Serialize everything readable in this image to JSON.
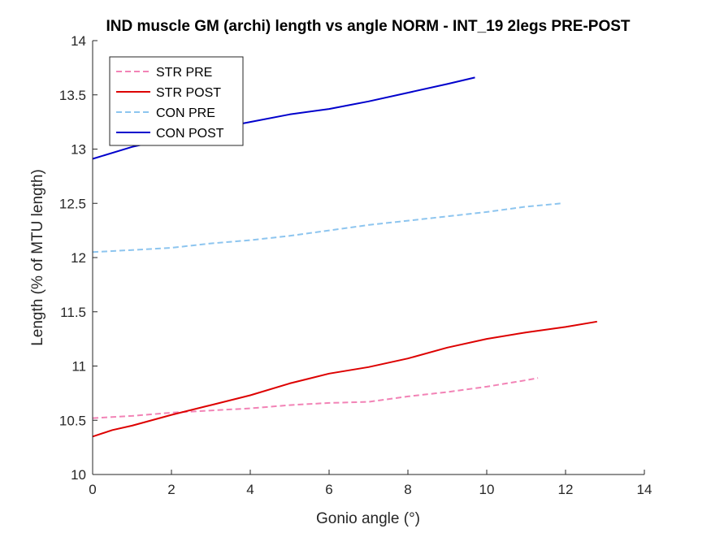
{
  "chart_data": {
    "type": "line",
    "title": "IND muscle GM (archi) length vs angle NORM - INT_19 2legs PRE-POST",
    "xlabel": "Gonio angle (°)",
    "ylabel": "Length (% of MTU length)",
    "xlim": [
      0,
      14
    ],
    "ylim": [
      10,
      14
    ],
    "xticks": [
      "0",
      "2",
      "4",
      "6",
      "8",
      "10",
      "12",
      "14"
    ],
    "yticks": [
      "10",
      "10.5",
      "11",
      "11.5",
      "12",
      "12.5",
      "13",
      "13.5",
      "14"
    ],
    "grid": false,
    "legend_position": "top-left",
    "series": [
      {
        "name": "STR PRE",
        "color": "#f283b6",
        "dash": "dashed",
        "x": [
          0,
          1,
          2,
          3,
          4,
          5,
          6,
          7,
          8,
          9,
          10,
          11,
          11.3
        ],
        "y": [
          10.52,
          10.54,
          10.57,
          10.59,
          10.61,
          10.64,
          10.66,
          10.67,
          10.72,
          10.76,
          10.81,
          10.87,
          10.89
        ]
      },
      {
        "name": "STR POST",
        "color": "#dd0000",
        "dash": "solid",
        "x": [
          0,
          0.5,
          1,
          2,
          3,
          4,
          5,
          6,
          7,
          8,
          9,
          10,
          11,
          12,
          12.8
        ],
        "y": [
          10.35,
          10.41,
          10.45,
          10.55,
          10.64,
          10.73,
          10.84,
          10.93,
          10.99,
          11.07,
          11.17,
          11.25,
          11.31,
          11.36,
          11.41
        ]
      },
      {
        "name": "CON PRE",
        "color": "#8dc5ef",
        "dash": "dashed",
        "x": [
          0,
          1,
          2,
          3,
          4,
          5,
          6,
          7,
          8,
          9,
          10,
          11,
          11.9
        ],
        "y": [
          12.05,
          12.07,
          12.09,
          12.13,
          12.16,
          12.2,
          12.25,
          12.3,
          12.34,
          12.38,
          12.42,
          12.47,
          12.5
        ]
      },
      {
        "name": "CON POST",
        "color": "#0000cc",
        "dash": "solid",
        "x": [
          0,
          1,
          2,
          3,
          4,
          5,
          6,
          7,
          8,
          9,
          9.7
        ],
        "y": [
          12.91,
          13.02,
          13.1,
          13.18,
          13.25,
          13.32,
          13.37,
          13.44,
          13.52,
          13.6,
          13.66
        ]
      }
    ]
  }
}
